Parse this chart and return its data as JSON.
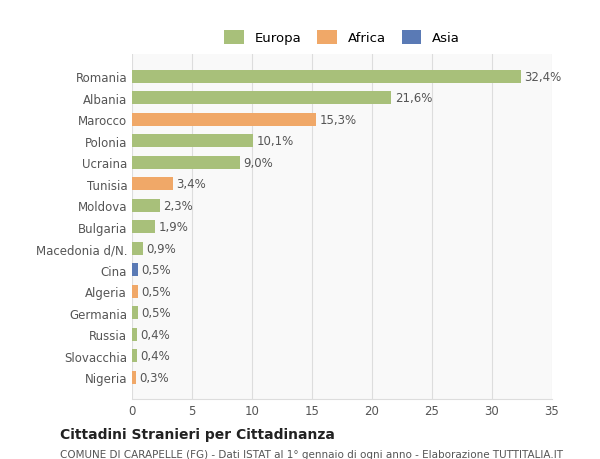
{
  "categories": [
    "Romania",
    "Albania",
    "Marocco",
    "Polonia",
    "Ucraina",
    "Tunisia",
    "Moldova",
    "Bulgaria",
    "Macedonia d/N.",
    "Cina",
    "Algeria",
    "Germania",
    "Russia",
    "Slovacchia",
    "Nigeria"
  ],
  "values": [
    32.4,
    21.6,
    15.3,
    10.1,
    9.0,
    3.4,
    2.3,
    1.9,
    0.9,
    0.5,
    0.5,
    0.5,
    0.4,
    0.4,
    0.3
  ],
  "labels": [
    "32,4%",
    "21,6%",
    "15,3%",
    "10,1%",
    "9,0%",
    "3,4%",
    "2,3%",
    "1,9%",
    "0,9%",
    "0,5%",
    "0,5%",
    "0,5%",
    "0,4%",
    "0,4%",
    "0,3%"
  ],
  "continents": [
    "Europa",
    "Europa",
    "Africa",
    "Europa",
    "Europa",
    "Africa",
    "Europa",
    "Europa",
    "Europa",
    "Asia",
    "Africa",
    "Europa",
    "Europa",
    "Europa",
    "Africa"
  ],
  "colors": {
    "Europa": "#a8c07a",
    "Africa": "#f0a868",
    "Asia": "#5a7ab5"
  },
  "legend_colors": {
    "Europa": "#a8c07a",
    "Africa": "#f0a868",
    "Asia": "#5a7ab5"
  },
  "xlim": [
    0,
    35
  ],
  "xticks": [
    0,
    5,
    10,
    15,
    20,
    25,
    30,
    35
  ],
  "title": "Cittadini Stranieri per Cittadinanza",
  "subtitle": "COMUNE DI CARAPELLE (FG) - Dati ISTAT al 1° gennaio di ogni anno - Elaborazione TUTTITALIA.IT",
  "bg_color": "#ffffff",
  "grid_color": "#dddddd",
  "bar_height": 0.6,
  "label_fontsize": 8.5,
  "tick_fontsize": 8.5
}
